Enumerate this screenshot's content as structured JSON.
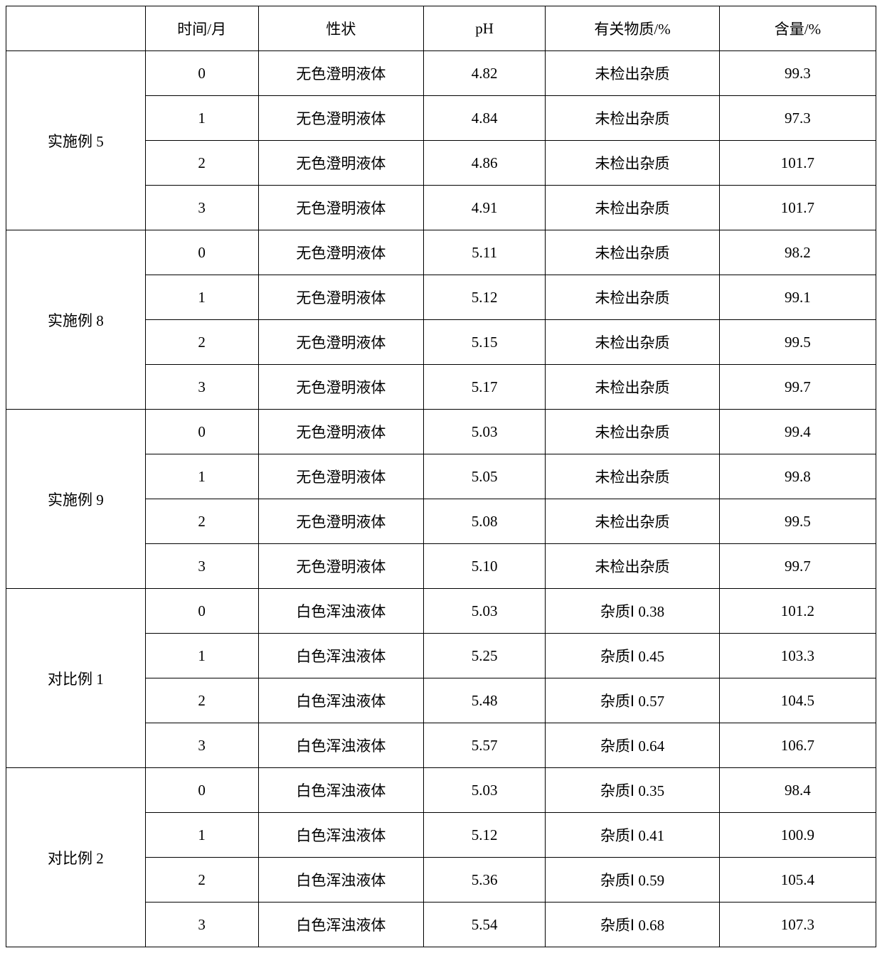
{
  "table": {
    "type": "table",
    "background_color": "#ffffff",
    "border_color": "#000000",
    "text_color": "#000000",
    "font_size": 21,
    "columns": [
      {
        "key": "group",
        "label": "",
        "width_pct": 16
      },
      {
        "key": "time",
        "label": "时间/月",
        "width_pct": 13
      },
      {
        "key": "appearance",
        "label": "性状",
        "width_pct": 19
      },
      {
        "key": "ph",
        "label": "pH",
        "width_pct": 14
      },
      {
        "key": "substance",
        "label": "有关物质/%",
        "width_pct": 20
      },
      {
        "key": "content",
        "label": "含量/%",
        "width_pct": 18
      }
    ],
    "groups": [
      {
        "name": "实施例 5",
        "rows": [
          {
            "time": "0",
            "appearance": "无色澄明液体",
            "ph": "4.82",
            "substance": "未检出杂质",
            "content": "99.3"
          },
          {
            "time": "1",
            "appearance": "无色澄明液体",
            "ph": "4.84",
            "substance": "未检出杂质",
            "content": "97.3"
          },
          {
            "time": "2",
            "appearance": "无色澄明液体",
            "ph": "4.86",
            "substance": "未检出杂质",
            "content": "101.7"
          },
          {
            "time": "3",
            "appearance": "无色澄明液体",
            "ph": "4.91",
            "substance": "未检出杂质",
            "content": "101.7"
          }
        ]
      },
      {
        "name": "实施例 8",
        "rows": [
          {
            "time": "0",
            "appearance": "无色澄明液体",
            "ph": "5.11",
            "substance": "未检出杂质",
            "content": "98.2"
          },
          {
            "time": "1",
            "appearance": "无色澄明液体",
            "ph": "5.12",
            "substance": "未检出杂质",
            "content": "99.1"
          },
          {
            "time": "2",
            "appearance": "无色澄明液体",
            "ph": "5.15",
            "substance": "未检出杂质",
            "content": "99.5"
          },
          {
            "time": "3",
            "appearance": "无色澄明液体",
            "ph": "5.17",
            "substance": "未检出杂质",
            "content": "99.7"
          }
        ]
      },
      {
        "name": "实施例 9",
        "rows": [
          {
            "time": "0",
            "appearance": "无色澄明液体",
            "ph": "5.03",
            "substance": "未检出杂质",
            "content": "99.4"
          },
          {
            "time": "1",
            "appearance": "无色澄明液体",
            "ph": "5.05",
            "substance": "未检出杂质",
            "content": "99.8"
          },
          {
            "time": "2",
            "appearance": "无色澄明液体",
            "ph": "5.08",
            "substance": "未检出杂质",
            "content": "99.5"
          },
          {
            "time": "3",
            "appearance": "无色澄明液体",
            "ph": "5.10",
            "substance": "未检出杂质",
            "content": "99.7"
          }
        ]
      },
      {
        "name": "对比例 1",
        "rows": [
          {
            "time": "0",
            "appearance": "白色浑浊液体",
            "ph": "5.03",
            "substance": "杂质Ⅰ 0.38",
            "content": "101.2"
          },
          {
            "time": "1",
            "appearance": "白色浑浊液体",
            "ph": "5.25",
            "substance": "杂质Ⅰ 0.45",
            "content": "103.3"
          },
          {
            "time": "2",
            "appearance": "白色浑浊液体",
            "ph": "5.48",
            "substance": "杂质Ⅰ 0.57",
            "content": "104.5"
          },
          {
            "time": "3",
            "appearance": "白色浑浊液体",
            "ph": "5.57",
            "substance": "杂质Ⅰ 0.64",
            "content": "106.7"
          }
        ]
      },
      {
        "name": "对比例 2",
        "rows": [
          {
            "time": "0",
            "appearance": "白色浑浊液体",
            "ph": "5.03",
            "substance": "杂质Ⅰ 0.35",
            "content": "98.4"
          },
          {
            "time": "1",
            "appearance": "白色浑浊液体",
            "ph": "5.12",
            "substance": "杂质Ⅰ 0.41",
            "content": "100.9"
          },
          {
            "time": "2",
            "appearance": "白色浑浊液体",
            "ph": "5.36",
            "substance": "杂质Ⅰ 0.59",
            "content": "105.4"
          },
          {
            "time": "3",
            "appearance": "白色浑浊液体",
            "ph": "5.54",
            "substance": "杂质Ⅰ 0.68",
            "content": "107.3"
          }
        ]
      }
    ]
  }
}
